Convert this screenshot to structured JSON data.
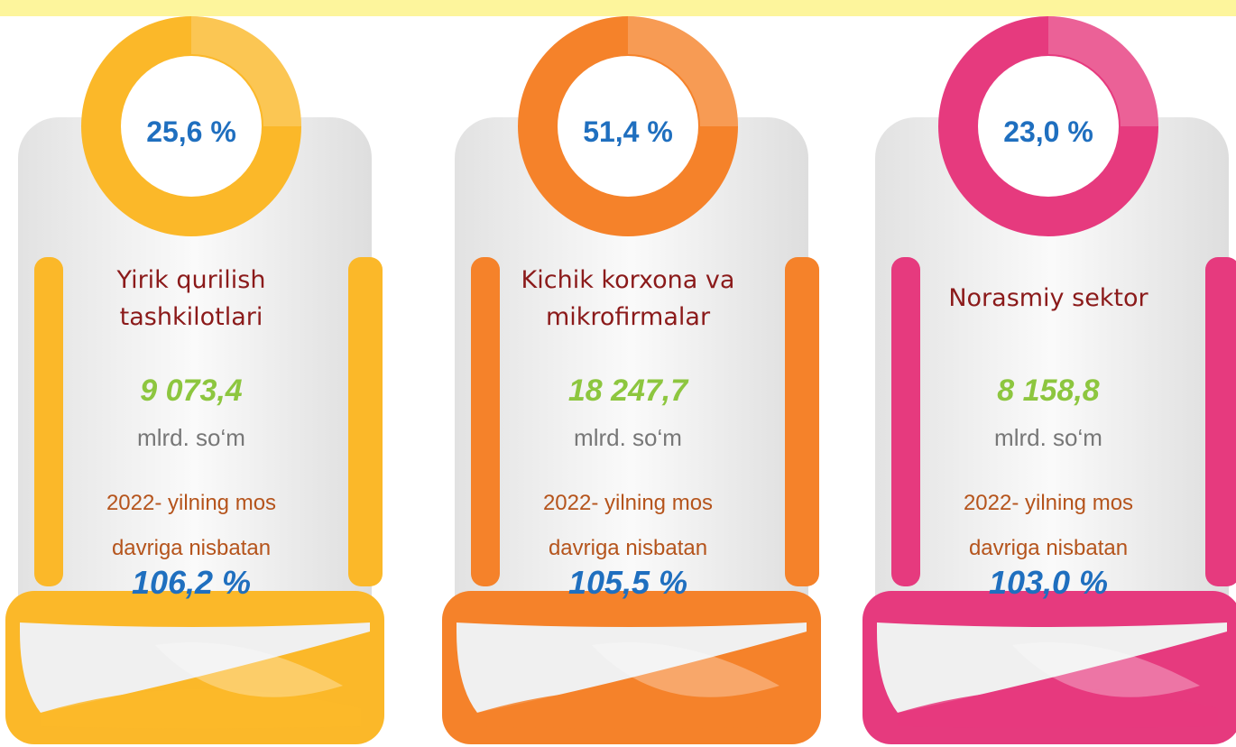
{
  "cards": [
    {
      "share": "25,6 %",
      "title": "Yirik qurilish tashkilotlari",
      "value": "9 073,4",
      "unit": "mlrd. so‘m",
      "note": "2022- yilning mos davriga nisbatan",
      "growth": "106,2 %",
      "color": "#fbb829"
    },
    {
      "share": "51,4 %",
      "title": "Kichik korxona va mikrofirmalar",
      "value": "18 247,7",
      "unit": "mlrd. so‘m",
      "note": "2022- yilning mos davriga nisbatan",
      "growth": "105,5 %",
      "color": "#f5822a"
    },
    {
      "share": "23,0 %",
      "title": "Norasmiy sektor",
      "value": "8 158,8",
      "unit": "mlrd. so‘m",
      "note": "2022- yilning mos davriga nisbatan",
      "growth": "103,0 %",
      "color": "#e63a7e"
    }
  ]
}
